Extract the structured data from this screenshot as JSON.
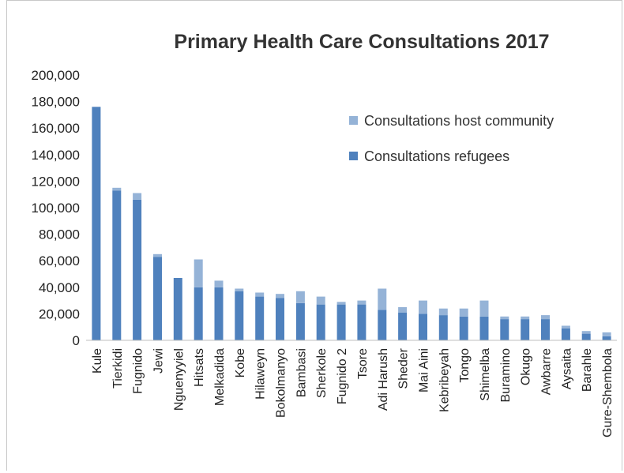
{
  "chart_data": {
    "type": "bar",
    "stacked": true,
    "title": "Primary Health Care Consultations 2017",
    "categories": [
      "Kule",
      "Tierkidi",
      "Fugnido",
      "Jewi",
      "Nguenyyiel",
      "Hitsats",
      "Melkadida",
      "Kobe",
      "Hilaweyn",
      "Bokolmanyo",
      "Bambasi",
      "Sherkole",
      "Fugnido 2",
      "Tsore",
      "Adi Harush",
      "Sheder",
      "Mai Aini",
      "Kebribeyah",
      "Tongo",
      "Shimelba",
      "Buramino",
      "Okugo",
      "Awbarre",
      "Aysaita",
      "Barahle",
      "Gure-Shembola"
    ],
    "series": [
      {
        "name": "Consultations refugees",
        "color": "#4f81bd",
        "values": [
          176000,
          113000,
          106000,
          63000,
          47000,
          40000,
          40000,
          37000,
          33000,
          32000,
          28000,
          27000,
          27000,
          27000,
          23000,
          21000,
          20000,
          19000,
          18000,
          18000,
          16000,
          16000,
          16000,
          9000,
          5000,
          3000
        ]
      },
      {
        "name": "Consultations host community",
        "color": "#95b3d7",
        "values": [
          0,
          2000,
          5000,
          2000,
          0,
          21000,
          5000,
          2000,
          3000,
          3000,
          9000,
          6000,
          2000,
          3000,
          16000,
          4000,
          10000,
          5000,
          6000,
          12000,
          2000,
          2000,
          3000,
          2000,
          2000,
          3000
        ]
      }
    ],
    "legend": [
      "Consultations host community",
      "Consultations refugees"
    ],
    "y_ticks": [
      "0",
      "20,000",
      "40,000",
      "60,000",
      "80,000",
      "100,000",
      "120,000",
      "140,000",
      "160,000",
      "180,000",
      "200,000"
    ],
    "ylim": [
      0,
      200000
    ],
    "grid": false,
    "legend_position": "top-right"
  }
}
